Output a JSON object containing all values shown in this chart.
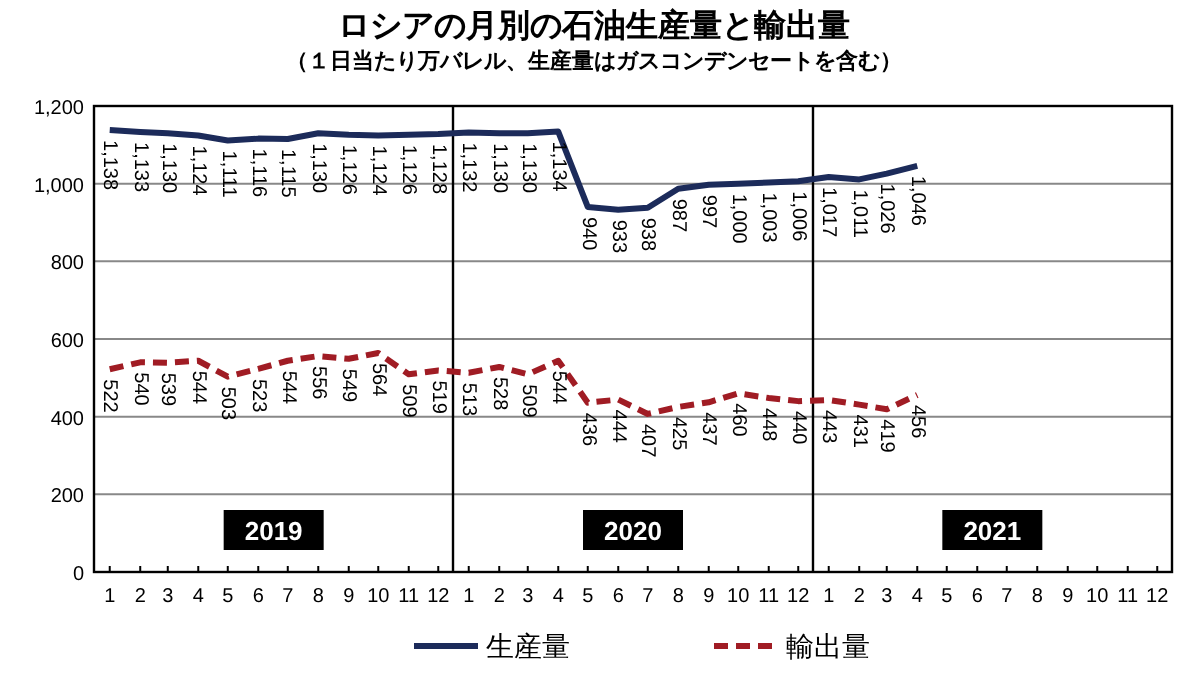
{
  "chart_data": {
    "type": "line",
    "title": "ロシアの月別の石油生産量と輸出量",
    "subtitle": "（１日当たり万バレル、生産量はガスコンデンセートを含む）",
    "x": [
      "2019-01",
      "2019-02",
      "2019-03",
      "2019-04",
      "2019-05",
      "2019-06",
      "2019-07",
      "2019-08",
      "2019-09",
      "2019-10",
      "2019-11",
      "2019-12",
      "2020-01",
      "2020-02",
      "2020-03",
      "2020-04",
      "2020-05",
      "2020-06",
      "2020-07",
      "2020-08",
      "2020-09",
      "2020-10",
      "2020-11",
      "2020-12",
      "2021-01",
      "2021-02",
      "2021-03",
      "2021-04"
    ],
    "xlim": [
      "2018-12-16",
      "2021-12-16"
    ],
    "xticks": [
      {
        "value": "2019-01",
        "label": "1"
      },
      {
        "value": "2019-02",
        "label": "2"
      },
      {
        "value": "2019-03",
        "label": "3"
      },
      {
        "value": "2019-04",
        "label": "4"
      },
      {
        "value": "2019-05",
        "label": "5"
      },
      {
        "value": "2019-06",
        "label": "6"
      },
      {
        "value": "2019-07",
        "label": "7"
      },
      {
        "value": "2019-08",
        "label": "8"
      },
      {
        "value": "2019-09",
        "label": "9"
      },
      {
        "value": "2019-10",
        "label": "10"
      },
      {
        "value": "2019-11",
        "label": "11"
      },
      {
        "value": "2019-12",
        "label": "12"
      },
      {
        "value": "2020-01",
        "label": "1"
      },
      {
        "value": "2020-02",
        "label": "2"
      },
      {
        "value": "2020-03",
        "label": "3"
      },
      {
        "value": "2020-04",
        "label": "4"
      },
      {
        "value": "2020-05",
        "label": "5"
      },
      {
        "value": "2020-06",
        "label": "6"
      },
      {
        "value": "2020-07",
        "label": "7"
      },
      {
        "value": "2020-08",
        "label": "8"
      },
      {
        "value": "2020-09",
        "label": "9"
      },
      {
        "value": "2020-10",
        "label": "10"
      },
      {
        "value": "2020-11",
        "label": "11"
      },
      {
        "value": "2020-12",
        "label": "12"
      },
      {
        "value": "2021-01",
        "label": "1"
      },
      {
        "value": "2021-02",
        "label": "2"
      },
      {
        "value": "2021-03",
        "label": "3"
      },
      {
        "value": "2021-04",
        "label": "4"
      },
      {
        "value": "2021-05",
        "label": "5"
      },
      {
        "value": "2021-06",
        "label": "6"
      },
      {
        "value": "2021-07",
        "label": "7"
      },
      {
        "value": "2021-08",
        "label": "8"
      },
      {
        "value": "2021-09",
        "label": "9"
      },
      {
        "value": "2021-10",
        "label": "10"
      },
      {
        "value": "2021-11",
        "label": "11"
      },
      {
        "value": "2021-12",
        "label": "12"
      }
    ],
    "ylim": [
      0,
      1200
    ],
    "yticks": [
      {
        "value": 0,
        "label": "0"
      },
      {
        "value": 200,
        "label": "200"
      },
      {
        "value": 400,
        "label": "400"
      },
      {
        "value": 600,
        "label": "600"
      },
      {
        "value": 800,
        "label": "800"
      },
      {
        "value": 1000,
        "label": "1,000"
      },
      {
        "value": 1200,
        "label": "1,200"
      }
    ],
    "grid": "y",
    "legend": "bottom",
    "ref_lines": [
      {
        "axis": "x",
        "value": "2019-12-16",
        "color": "#000000"
      },
      {
        "axis": "x",
        "value": "2020-12-16",
        "color": "#000000"
      }
    ],
    "annotations": [
      "2019",
      "2020",
      "2021"
    ],
    "series": [
      {
        "name": "生産量",
        "color": "#1c2b5a",
        "line_style": "solid",
        "values": [
          1138,
          1133,
          1130,
          1124,
          1111,
          1116,
          1115,
          1130,
          1126,
          1124,
          1126,
          1128,
          1132,
          1130,
          1130,
          1134,
          940,
          933,
          938,
          987,
          997,
          1000,
          1003,
          1006,
          1017,
          1011,
          1026,
          1046
        ],
        "value_labels": [
          "1,138",
          "1,133",
          "1,130",
          "1,124",
          "1,111",
          "1,116",
          "1,115",
          "1,130",
          "1,126",
          "1,124",
          "1,126",
          "1,128",
          "1,132",
          "1,130",
          "1,130",
          "1,134",
          "940",
          "933",
          "938",
          "987",
          "997",
          "1,000",
          "1,003",
          "1,006",
          "1,017",
          "1,011",
          "1,026",
          "1,046"
        ]
      },
      {
        "name": "輸出量",
        "color": "#a01c24",
        "line_style": "dashed",
        "values": [
          522,
          540,
          539,
          544,
          503,
          523,
          544,
          556,
          549,
          564,
          509,
          519,
          513,
          528,
          509,
          544,
          436,
          444,
          407,
          425,
          437,
          460,
          448,
          440,
          443,
          431,
          419,
          456
        ],
        "value_labels": [
          "522",
          "540",
          "539",
          "544",
          "503",
          "523",
          "544",
          "556",
          "549",
          "564",
          "509",
          "519",
          "513",
          "528",
          "509",
          "544",
          "436",
          "444",
          "407",
          "425",
          "437",
          "460",
          "448",
          "440",
          "443",
          "431",
          "419",
          "456"
        ]
      }
    ]
  }
}
